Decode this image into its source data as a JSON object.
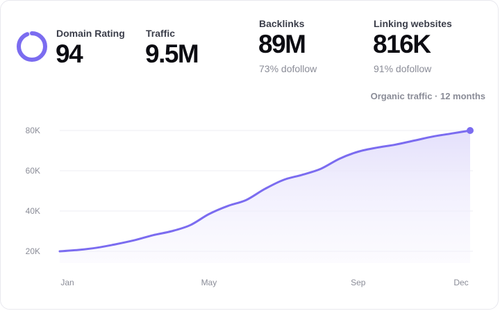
{
  "metrics": {
    "domain_rating": {
      "label": "Domain Rating",
      "value": "94",
      "ring_fraction": 0.94
    },
    "traffic": {
      "label": "Traffic",
      "value": "9.5M"
    },
    "backlinks": {
      "label": "Backlinks",
      "value": "89M",
      "sub": "73% dofollow"
    },
    "linking_websites": {
      "label": "Linking websites",
      "value": "816K",
      "sub": "91% dofollow"
    }
  },
  "chart_caption": "Organic traffic · 12 months",
  "colors": {
    "accent": "#7b6cf0",
    "fill_top": "#e4e0fb"
  },
  "chart_data": {
    "type": "area",
    "x_ticks": [
      "Jan",
      "May",
      "Sep",
      "Dec"
    ],
    "y_ticks": [
      "20K",
      "40K",
      "60K",
      "80K"
    ],
    "ylim": [
      20000,
      80000
    ],
    "x": [
      0,
      0.5,
      1,
      1.5,
      2,
      2.5,
      3,
      3.5,
      4,
      4.5,
      5,
      5.5,
      6,
      6.5,
      7,
      7.5,
      8,
      8.5,
      9,
      9.5,
      10,
      10.5,
      11
    ],
    "values": [
      20000,
      20700,
      21800,
      23500,
      25500,
      28000,
      30000,
      33000,
      38500,
      42500,
      45500,
      51000,
      55500,
      58000,
      61000,
      66000,
      69500,
      71500,
      73000,
      75000,
      77000,
      78500,
      80000
    ],
    "xlabel": "",
    "ylabel": "",
    "title": ""
  }
}
